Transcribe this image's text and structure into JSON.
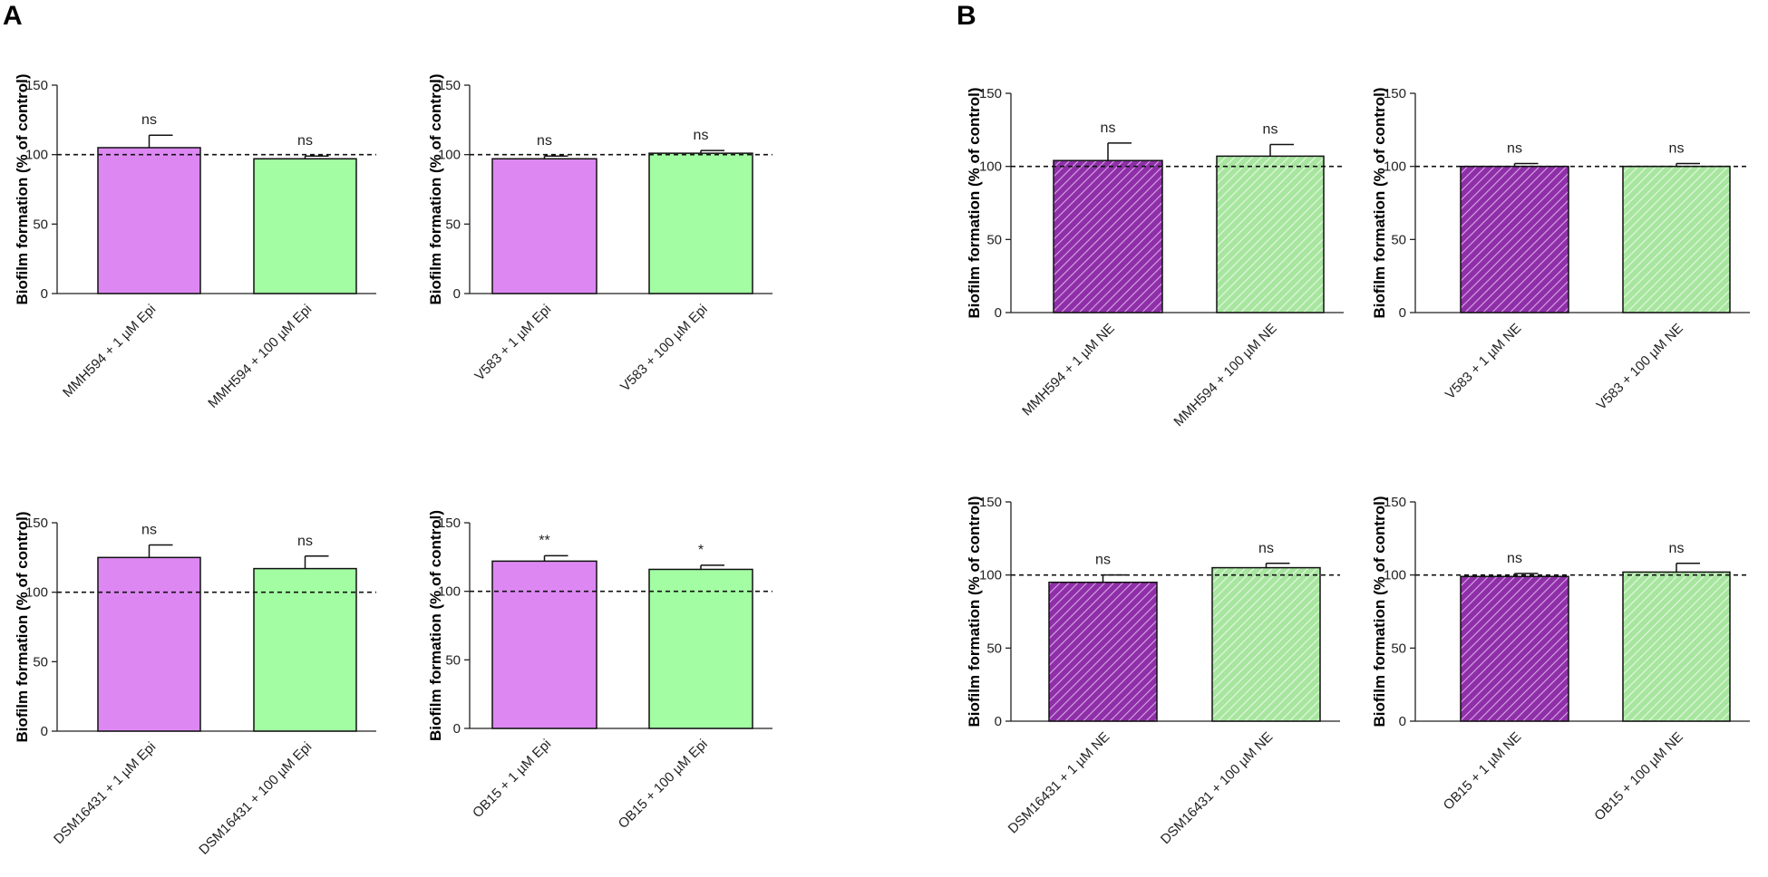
{
  "panels": [
    {
      "letter": "A"
    },
    {
      "letter": "B"
    }
  ],
  "chart_data": [
    {
      "type": "bar",
      "panel": "A",
      "style": "solid",
      "ylabel": "Biofilm formation (% of control)",
      "ylim": [
        0,
        150
      ],
      "yticks": [
        0,
        50,
        100,
        150
      ],
      "reference_line": 100,
      "categories": [
        "MMH594 + 1 µM Epi",
        "MMH594 + 100 µM Epi"
      ],
      "values": [
        105,
        97
      ],
      "errors": [
        9,
        2
      ],
      "significance": [
        "ns",
        "ns"
      ],
      "colors": [
        "#dd88f2",
        "#a3fda3"
      ]
    },
    {
      "type": "bar",
      "panel": "A",
      "style": "solid",
      "ylabel": "Biofilm formation (% of control)",
      "ylim": [
        0,
        150
      ],
      "yticks": [
        0,
        50,
        100,
        150
      ],
      "reference_line": 100,
      "categories": [
        "V583 + 1 µM Epi",
        "V583 + 100 µM Epi"
      ],
      "values": [
        97,
        101
      ],
      "errors": [
        2,
        2
      ],
      "significance": [
        "ns",
        "ns"
      ],
      "colors": [
        "#dd88f2",
        "#a3fda3"
      ]
    },
    {
      "type": "bar",
      "panel": "A",
      "style": "solid",
      "ylabel": "Biofilm formation (% of control)",
      "ylim": [
        0,
        150
      ],
      "yticks": [
        0,
        50,
        100,
        150
      ],
      "reference_line": 100,
      "categories": [
        "DSM16431 + 1 µM Epi",
        "DSM16431 + 100 µM Epi"
      ],
      "values": [
        125,
        117
      ],
      "errors": [
        9,
        9
      ],
      "significance": [
        "ns",
        "ns"
      ],
      "colors": [
        "#dd88f2",
        "#a3fda3"
      ]
    },
    {
      "type": "bar",
      "panel": "A",
      "style": "solid",
      "ylabel": "Biofilm formation (% of control)",
      "ylim": [
        0,
        150
      ],
      "yticks": [
        0,
        50,
        100,
        150
      ],
      "reference_line": 100,
      "categories": [
        "OB15 + 1 µM Epi",
        "OB15 + 100 µM Epi"
      ],
      "values": [
        122,
        116
      ],
      "errors": [
        4,
        3
      ],
      "significance": [
        "**",
        "*"
      ],
      "colors": [
        "#dd88f2",
        "#a3fda3"
      ]
    },
    {
      "type": "bar",
      "panel": "B",
      "style": "hatched",
      "ylabel": "Biofilm formation (% of control)",
      "ylim": [
        0,
        150
      ],
      "yticks": [
        0,
        50,
        100,
        150
      ],
      "reference_line": 100,
      "categories": [
        "MMH594 + 1 µM NE",
        "MMH594 + 100 µM NE"
      ],
      "values": [
        104,
        107
      ],
      "errors": [
        12,
        8
      ],
      "significance": [
        "ns",
        "ns"
      ],
      "colors": [
        "#8e2fa8",
        "#a8e6a0"
      ]
    },
    {
      "type": "bar",
      "panel": "B",
      "style": "hatched",
      "ylabel": "Biofilm formation (% of control)",
      "ylim": [
        0,
        150
      ],
      "yticks": [
        0,
        50,
        100,
        150
      ],
      "reference_line": 100,
      "categories": [
        "V583 + 1 µM NE",
        "V583 + 100 µM NE"
      ],
      "values": [
        100,
        100
      ],
      "errors": [
        2,
        2
      ],
      "significance": [
        "ns",
        "ns"
      ],
      "colors": [
        "#8e2fa8",
        "#a8e6a0"
      ]
    },
    {
      "type": "bar",
      "panel": "B",
      "style": "hatched",
      "ylabel": "Biofilm formation (% of control)",
      "ylim": [
        0,
        150
      ],
      "yticks": [
        0,
        50,
        100,
        150
      ],
      "reference_line": 100,
      "categories": [
        "DSM16431 + 1 µM NE",
        "DSM16431 + 100 µM NE"
      ],
      "values": [
        95,
        105
      ],
      "errors": [
        5,
        3
      ],
      "significance": [
        "ns",
        "ns"
      ],
      "colors": [
        "#8e2fa8",
        "#a8e6a0"
      ]
    },
    {
      "type": "bar",
      "panel": "B",
      "style": "hatched",
      "ylabel": "Biofilm formation (% of control)",
      "ylim": [
        0,
        150
      ],
      "yticks": [
        0,
        50,
        100,
        150
      ],
      "reference_line": 100,
      "categories": [
        "OB15 + 1 µM NE",
        "OB15 + 100 µM NE"
      ],
      "values": [
        99,
        102
      ],
      "errors": [
        2,
        6
      ],
      "significance": [
        "ns",
        "ns"
      ],
      "colors": [
        "#8e2fa8",
        "#a8e6a0"
      ]
    }
  ]
}
